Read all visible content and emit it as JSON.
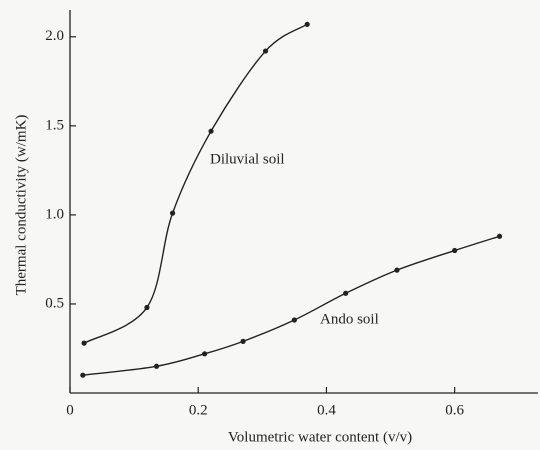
{
  "chart_data": {
    "type": "line",
    "x_label": "Volumetric  water  content  (v/v)",
    "y_label": "Thermal  conductivity  (w/mK)",
    "xlim": [
      0,
      0.73
    ],
    "ylim": [
      0,
      2.1
    ],
    "xticks": [
      0,
      0.2,
      0.4,
      0.6
    ],
    "yticks": [
      0.5,
      {
        "value": 1.0,
        "label": "1.0"
      },
      1.5,
      {
        "value": 2.0,
        "label": "2.0"
      }
    ],
    "color": "#222222",
    "series": [
      {
        "name": "Diluvial soil",
        "x": [
          0.022,
          0.12,
          0.16,
          0.22,
          0.305,
          0.37
        ],
        "values": [
          0.28,
          0.48,
          1.01,
          1.47,
          1.92,
          2.07
        ]
      },
      {
        "name": "Ando soil",
        "x": [
          0.02,
          0.135,
          0.21,
          0.27,
          0.35,
          0.43,
          0.51,
          0.6,
          0.67
        ],
        "values": [
          0.1,
          0.15,
          0.22,
          0.29,
          0.41,
          0.56,
          0.69,
          0.8,
          0.88
        ]
      }
    ]
  }
}
